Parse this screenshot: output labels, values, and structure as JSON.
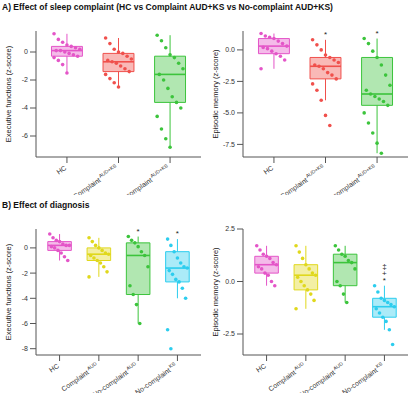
{
  "chart_data": [
    {
      "type": "box",
      "title": "A) Effect of sleep complaint (HC vs Complaint AUD+KS vs No-complaint AUD+KS)",
      "y_label": "Executive functions (z-score)",
      "grid": false,
      "categories": [
        "HC",
        "Complaint AUD+KS",
        "No-complaint AUD+KS"
      ],
      "colors": [
        "#e455c8",
        "#f0504c",
        "#3cc43c"
      ],
      "ylim": [
        -7.5,
        1.5
      ],
      "yticks": [
        -6,
        -4,
        -2,
        0
      ],
      "boxes": [
        {
          "min": -1.5,
          "q1": -0.3,
          "median": 0.1,
          "q3": 0.4,
          "max": 1.3
        },
        {
          "min": -2.5,
          "q1": -1.4,
          "median": -0.7,
          "q3": -0.1,
          "max": 1.0
        },
        {
          "min": -6.8,
          "q1": -3.6,
          "median": -1.6,
          "q3": -0.3,
          "max": 1.2
        }
      ],
      "points": [
        [
          1.3,
          0.9,
          0.7,
          0.5,
          0.4,
          0.3,
          0.2,
          0.1,
          0.1,
          0.0,
          -0.1,
          -0.2,
          -0.3,
          -0.4,
          -0.6,
          -0.9,
          -1.5
        ],
        [
          1.0,
          0.6,
          0.2,
          0.0,
          -0.1,
          -0.3,
          -0.5,
          -0.6,
          -0.7,
          -0.8,
          -1.0,
          -1.2,
          -1.4,
          -1.6,
          -1.9,
          -2.2,
          -2.5
        ],
        [
          1.2,
          0.8,
          0.3,
          -0.2,
          -0.4,
          -0.8,
          -1.2,
          -1.6,
          -2.0,
          -2.6,
          -3.2,
          -3.6,
          -4.0,
          -4.6,
          -5.5,
          -6.2,
          -6.8
        ]
      ],
      "annotations": [
        [],
        [],
        [
          "+"
        ]
      ]
    },
    {
      "type": "box",
      "y_label": "Episodic memory (z-score)",
      "grid": false,
      "categories": [
        "HC",
        "Complaint AUD+KS",
        "No-complaint AUD+KS"
      ],
      "colors": [
        "#e455c8",
        "#f0504c",
        "#3cc43c"
      ],
      "ylim": [
        -8.5,
        1.5
      ],
      "yticks": [
        {
          "value": -7.5,
          "label": "-7.5"
        },
        {
          "value": -5,
          "label": "-5.0"
        },
        {
          "value": -2.5,
          "label": "-2.5"
        },
        {
          "value": 0,
          "label": "0.0"
        }
      ],
      "boxes": [
        {
          "min": -1.5,
          "q1": -0.3,
          "median": 0.3,
          "q3": 0.9,
          "max": 1.3
        },
        {
          "min": -4.0,
          "q1": -2.3,
          "median": -1.3,
          "q3": -0.6,
          "max": 0.8
        },
        {
          "min": -8.2,
          "q1": -4.4,
          "median": -3.5,
          "q3": -0.6,
          "max": 0.9
        }
      ],
      "points": [
        [
          1.3,
          1.1,
          1.0,
          0.9,
          0.7,
          0.5,
          0.3,
          0.2,
          0.1,
          -0.1,
          -0.3,
          -0.5,
          -0.8,
          -1.5
        ],
        [
          0.8,
          0.4,
          0.0,
          -0.4,
          -0.6,
          -0.8,
          -1.0,
          -1.2,
          -1.3,
          -1.5,
          -1.8,
          -2.0,
          -2.3,
          -2.7,
          -3.2,
          -4.0,
          -5.2,
          -6.0
        ],
        [
          0.9,
          0.5,
          -0.1,
          -0.6,
          -1.2,
          -2.0,
          -2.8,
          -3.2,
          -3.5,
          -3.7,
          -3.9,
          -4.1,
          -4.4,
          -5.0,
          -5.8,
          -6.6,
          -7.4,
          -8.2
        ]
      ],
      "annotations": [
        [],
        [
          "*"
        ],
        [
          "+",
          "*"
        ]
      ]
    },
    {
      "type": "box",
      "title": "B) Effect of diagnosis",
      "y_label": "Executive functions (z-score)",
      "grid": false,
      "categories": [
        "HC",
        "Complaint AUD",
        "No-complaint AUD",
        "No-complaint KS"
      ],
      "colors": [
        "#e455c8",
        "#e0d81c",
        "#3cc43c",
        "#2ccdee"
      ],
      "ylim": [
        -8.5,
        1.5
      ],
      "yticks": [
        -8,
        -6,
        -4,
        -2,
        0
      ],
      "boxes": [
        {
          "min": -1.0,
          "q1": -0.2,
          "median": 0.2,
          "q3": 0.5,
          "max": 1.1
        },
        {
          "min": -2.3,
          "q1": -1.0,
          "median": -0.5,
          "q3": 0.0,
          "max": 0.8
        },
        {
          "min": -6.0,
          "q1": -3.7,
          "median": -0.6,
          "q3": 0.4,
          "max": 0.9
        },
        {
          "min": -4.0,
          "q1": -2.7,
          "median": -1.6,
          "q3": -0.3,
          "max": 0.7
        }
      ],
      "points": [
        [
          1.1,
          0.8,
          0.6,
          0.5,
          0.3,
          0.2,
          0.2,
          0.1,
          0.0,
          -0.2,
          -0.4,
          -0.7,
          -1.0
        ],
        [
          0.8,
          0.5,
          0.2,
          0.0,
          -0.2,
          -0.4,
          -0.5,
          -0.6,
          -0.8,
          -1.0,
          -1.2,
          -1.5,
          -1.9,
          -2.3
        ],
        [
          0.9,
          0.6,
          0.4,
          0.1,
          -0.3,
          -0.6,
          -1.5,
          -3.0,
          -3.7,
          -4.5,
          -6.0
        ],
        [
          0.7,
          0.2,
          -0.3,
          -0.8,
          -1.2,
          -1.5,
          -1.6,
          -1.8,
          -2.1,
          -2.5,
          -2.7,
          -3.2,
          -4.0,
          -6.5,
          -8.0
        ]
      ],
      "annotations": [
        [],
        [],
        [
          "*"
        ],
        [
          "*"
        ]
      ]
    },
    {
      "type": "box",
      "y_label": "Episodic memory (z-score)",
      "grid": false,
      "categories": [
        "HC",
        "Complaint AUD",
        "No-complaint AUD",
        "No-complaint KS"
      ],
      "colors": [
        "#e455c8",
        "#e0d81c",
        "#3cc43c",
        "#2ccdee"
      ],
      "ylim": [
        -3.5,
        2.5
      ],
      "yticks": [
        {
          "value": -2.5,
          "label": "-2.5"
        },
        {
          "value": 0,
          "label": "0.0"
        },
        {
          "value": 2.5,
          "label": "2.5"
        }
      ],
      "boxes": [
        {
          "min": -0.2,
          "q1": 0.4,
          "median": 0.8,
          "q3": 1.2,
          "max": 1.7
        },
        {
          "min": -1.3,
          "q1": -0.4,
          "median": 0.3,
          "q3": 0.8,
          "max": 1.7
        },
        {
          "min": -1.0,
          "q1": -0.2,
          "median": 0.9,
          "q3": 1.3,
          "max": 1.7
        },
        {
          "min": -2.3,
          "q1": -1.7,
          "median": -1.2,
          "q3": -0.8,
          "max": -0.2
        }
      ],
      "points": [
        [
          1.7,
          1.5,
          1.3,
          1.2,
          1.1,
          0.9,
          0.8,
          0.7,
          0.6,
          0.4,
          0.3,
          0.0,
          -0.2
        ],
        [
          1.7,
          1.4,
          1.1,
          0.8,
          0.6,
          0.4,
          0.3,
          0.2,
          0.0,
          -0.2,
          -0.4,
          -0.6,
          -0.9,
          -1.3
        ],
        [
          1.7,
          1.5,
          1.3,
          1.2,
          1.0,
          0.9,
          0.6,
          0.0,
          -0.2,
          -0.6,
          -1.0
        ],
        [
          -0.2,
          -0.5,
          -0.8,
          -0.9,
          -1.0,
          -1.1,
          -1.2,
          -1.3,
          -1.5,
          -1.7,
          -1.9,
          -2.3,
          -3.0
        ]
      ],
      "annotations": [
        [],
        [],
        [],
        [
          "‡",
          "+",
          "*"
        ]
      ]
    }
  ]
}
